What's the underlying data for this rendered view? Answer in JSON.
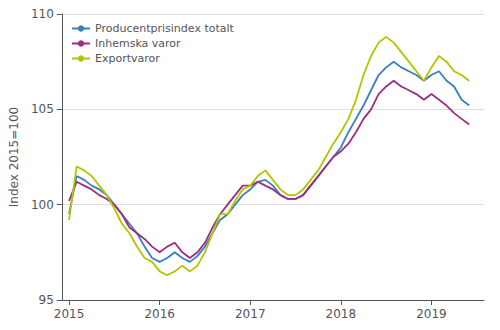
{
  "chart_data": {
    "type": "line",
    "ylabel": "Index 2015=100",
    "x": [
      2015.0,
      2015.0833333333333,
      2015.1666666666667,
      2015.25,
      2015.3333333333333,
      2015.4166666666667,
      2015.5,
      2015.5833333333333,
      2015.6666666666667,
      2015.75,
      2015.8333333333333,
      2015.9166666666667,
      2016.0,
      2016.0833333333333,
      2016.1666666666667,
      2016.25,
      2016.3333333333333,
      2016.4166666666667,
      2016.5,
      2016.5833333333333,
      2016.6666666666667,
      2016.75,
      2016.8333333333333,
      2016.9166666666667,
      2017.0,
      2017.0833333333333,
      2017.1666666666667,
      2017.25,
      2017.3333333333333,
      2017.4166666666667,
      2017.5,
      2017.5833333333333,
      2017.6666666666667,
      2017.75,
      2017.8333333333333,
      2017.9166666666667,
      2018.0,
      2018.0833333333333,
      2018.1666666666667,
      2018.25,
      2018.3333333333333,
      2018.4166666666667,
      2018.5,
      2018.5833333333333,
      2018.6666666666667,
      2018.75,
      2018.8333333333333,
      2018.9166666666667,
      2019.0,
      2019.0833333333333,
      2019.1666666666667,
      2019.25,
      2019.3333333333333,
      2019.4166666666667
    ],
    "xlim": [
      2014.92,
      2019.58
    ],
    "xticks": [
      2015,
      2016,
      2017,
      2018,
      2019
    ],
    "ylim": [
      95,
      110
    ],
    "yticks": [
      95,
      100,
      105,
      110
    ],
    "grid": true,
    "legend": "upper left",
    "series": [
      {
        "name": "Producentprisindex totalt",
        "color": "#3a7ebf",
        "values": [
          99.5,
          101.5,
          101.3,
          101.0,
          100.8,
          100.5,
          100.0,
          99.5,
          99.0,
          98.5,
          97.8,
          97.2,
          97.0,
          97.2,
          97.5,
          97.2,
          97.0,
          97.3,
          97.8,
          98.5,
          99.2,
          99.5,
          100.0,
          100.5,
          100.8,
          101.2,
          101.3,
          101.0,
          100.5,
          100.3,
          100.3,
          100.5,
          101.0,
          101.5,
          102.0,
          102.5,
          103.0,
          103.8,
          104.5,
          105.2,
          106.0,
          106.8,
          107.2,
          107.5,
          107.2,
          107.0,
          106.8,
          106.5,
          106.8,
          107.0,
          106.5,
          106.2,
          105.5,
          105.2
        ]
      },
      {
        "name": "Inhemska varor",
        "color": "#9b2d82",
        "values": [
          100.2,
          101.2,
          101.0,
          100.8,
          100.5,
          100.3,
          100.0,
          99.5,
          98.8,
          98.5,
          98.2,
          97.8,
          97.5,
          97.8,
          98.0,
          97.5,
          97.2,
          97.5,
          98.0,
          98.8,
          99.5,
          100.0,
          100.5,
          101.0,
          101.0,
          101.2,
          101.0,
          100.8,
          100.5,
          100.3,
          100.3,
          100.5,
          101.0,
          101.5,
          102.0,
          102.5,
          102.8,
          103.2,
          103.8,
          104.5,
          105.0,
          105.8,
          106.2,
          106.5,
          106.2,
          106.0,
          105.8,
          105.5,
          105.8,
          105.5,
          105.2,
          104.8,
          104.5,
          104.2
        ]
      },
      {
        "name": "Exportvaror",
        "color": "#b5c400",
        "values": [
          99.2,
          102.0,
          101.8,
          101.5,
          101.0,
          100.5,
          99.8,
          99.0,
          98.5,
          97.8,
          97.2,
          97.0,
          96.5,
          96.3,
          96.5,
          96.8,
          96.5,
          96.8,
          97.5,
          98.5,
          99.5,
          99.5,
          100.2,
          100.8,
          101.0,
          101.5,
          101.8,
          101.3,
          100.8,
          100.5,
          100.5,
          100.8,
          101.3,
          101.8,
          102.5,
          103.2,
          103.8,
          104.5,
          105.5,
          106.8,
          107.8,
          108.5,
          108.8,
          108.5,
          108.0,
          107.5,
          107.0,
          106.5,
          107.2,
          107.8,
          107.5,
          107.0,
          106.8,
          106.5
        ]
      }
    ]
  }
}
